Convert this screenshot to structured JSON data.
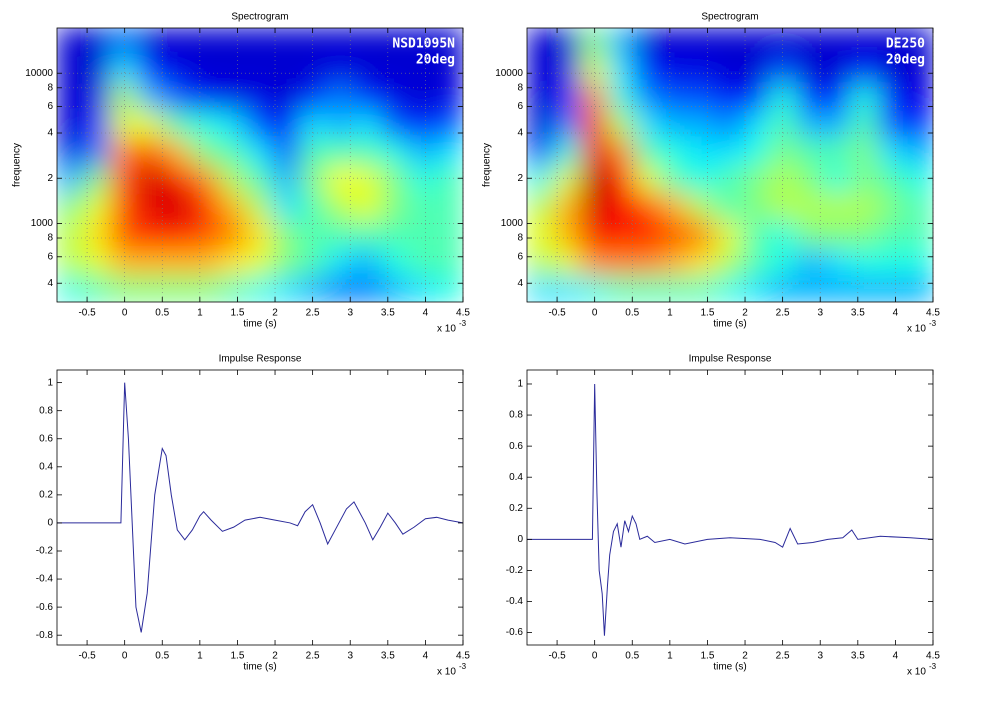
{
  "chart_data": [
    {
      "type": "heatmap",
      "title": "Spectrogram",
      "xlabel": "time (s)",
      "ylabel": "frequency",
      "x_multiplier": "x 10",
      "x_exponent": "-3",
      "annotations": [
        "NSD1095N",
        "20deg"
      ],
      "colormap": "jet",
      "clim": [
        0,
        1
      ],
      "grid": true,
      "ylog": true,
      "xlim": [
        -0.9,
        4.5
      ],
      "xticks": [
        -0.5,
        0,
        0.5,
        1,
        1.5,
        2,
        2.5,
        3,
        3.5,
        4,
        4.5
      ],
      "ylim": [
        300,
        20000
      ],
      "yticks": [
        {
          "value": 400,
          "label": "4"
        },
        {
          "value": 600,
          "label": "6"
        },
        {
          "value": 800,
          "label": "8"
        },
        1000,
        {
          "value": 2000,
          "label": "2"
        },
        {
          "value": 4000,
          "label": "4"
        },
        {
          "value": 6000,
          "label": "6"
        },
        {
          "value": 8000,
          "label": "8"
        },
        10000
      ],
      "x": [
        -0.72,
        -0.36,
        0,
        0.36,
        0.72,
        1.08,
        1.44,
        1.8,
        2.16,
        2.52,
        2.88,
        3.24,
        3.6,
        3.96,
        4.32
      ],
      "y": [
        370,
        560,
        860,
        1300,
        2000,
        3000,
        4600,
        7000,
        10600,
        16200
      ],
      "z": [
        [
          0.4,
          0.45,
          0.5,
          0.5,
          0.5,
          0.5,
          0.45,
          0.4,
          0.35,
          0.3,
          0.25,
          0.25,
          0.3,
          0.35,
          0.4
        ],
        [
          0.55,
          0.6,
          0.7,
          0.7,
          0.7,
          0.7,
          0.65,
          0.6,
          0.5,
          0.45,
          0.35,
          0.3,
          0.4,
          0.45,
          0.45
        ],
        [
          0.55,
          0.65,
          0.8,
          0.85,
          0.85,
          0.8,
          0.75,
          0.65,
          0.5,
          0.45,
          0.45,
          0.45,
          0.45,
          0.45,
          0.45
        ],
        [
          0.5,
          0.6,
          0.8,
          0.9,
          0.92,
          0.85,
          0.7,
          0.55,
          0.35,
          0.45,
          0.55,
          0.6,
          0.5,
          0.45,
          0.45
        ],
        [
          0.3,
          0.5,
          0.8,
          0.92,
          0.88,
          0.75,
          0.55,
          0.45,
          0.3,
          0.5,
          0.62,
          0.6,
          0.5,
          0.4,
          0.45
        ],
        [
          0.1,
          0.25,
          0.75,
          0.8,
          0.7,
          0.5,
          0.45,
          0.35,
          0.2,
          0.45,
          0.45,
          0.45,
          0.4,
          0.3,
          0.35
        ],
        [
          0.08,
          0.15,
          0.6,
          0.6,
          0.45,
          0.4,
          0.35,
          0.2,
          0.12,
          0.35,
          0.3,
          0.35,
          0.2,
          0.15,
          0.2
        ],
        [
          0.08,
          0.1,
          0.55,
          0.3,
          0.2,
          0.12,
          0.1,
          0.1,
          0.08,
          0.15,
          0.25,
          0.15,
          0.1,
          0.08,
          0.1
        ],
        [
          0.08,
          0.08,
          0.35,
          0.15,
          0.1,
          0.08,
          0.08,
          0.08,
          0.08,
          0.08,
          0.1,
          0.08,
          0.08,
          0.08,
          0.08
        ],
        [
          0.08,
          0.08,
          0.25,
          0.08,
          0.08,
          0.08,
          0.08,
          0.08,
          0.08,
          0.08,
          0.08,
          0.08,
          0.08,
          0.08,
          0.08
        ]
      ]
    },
    {
      "type": "heatmap",
      "title": "Spectrogram",
      "xlabel": "time (s)",
      "ylabel": "frequency",
      "x_multiplier": "x 10",
      "x_exponent": "-3",
      "annotations": [
        "DE250",
        "20deg"
      ],
      "colormap": "jet",
      "clim": [
        0,
        1
      ],
      "grid": true,
      "ylog": true,
      "xlim": [
        -0.9,
        4.5
      ],
      "xticks": [
        -0.5,
        0,
        0.5,
        1,
        1.5,
        2,
        2.5,
        3,
        3.5,
        4,
        4.5
      ],
      "ylim": [
        300,
        20000
      ],
      "yticks": [
        {
          "value": 400,
          "label": "4"
        },
        {
          "value": 600,
          "label": "6"
        },
        {
          "value": 800,
          "label": "8"
        },
        1000,
        {
          "value": 2000,
          "label": "2"
        },
        {
          "value": 4000,
          "label": "4"
        },
        {
          "value": 6000,
          "label": "6"
        },
        {
          "value": 8000,
          "label": "8"
        },
        10000
      ],
      "x": [
        -0.72,
        -0.36,
        0,
        0.36,
        0.72,
        1.08,
        1.44,
        1.8,
        2.16,
        2.52,
        2.88,
        3.24,
        3.6,
        3.96,
        4.32
      ],
      "y": [
        370,
        560,
        860,
        1300,
        2000,
        3000,
        4600,
        7000,
        10600,
        16200
      ],
      "z": [
        [
          0.35,
          0.35,
          0.4,
          0.45,
          0.45,
          0.45,
          0.45,
          0.4,
          0.35,
          0.3,
          0.3,
          0.3,
          0.3,
          0.3,
          0.3
        ],
        [
          0.55,
          0.6,
          0.75,
          0.75,
          0.75,
          0.7,
          0.65,
          0.55,
          0.45,
          0.4,
          0.3,
          0.35,
          0.4,
          0.4,
          0.4
        ],
        [
          0.6,
          0.7,
          0.88,
          0.85,
          0.85,
          0.8,
          0.75,
          0.6,
          0.45,
          0.4,
          0.5,
          0.5,
          0.5,
          0.45,
          0.45
        ],
        [
          0.55,
          0.7,
          0.92,
          0.88,
          0.8,
          0.7,
          0.55,
          0.45,
          0.5,
          0.55,
          0.55,
          0.55,
          0.55,
          0.5,
          0.45
        ],
        [
          0.4,
          0.6,
          0.95,
          0.85,
          0.6,
          0.45,
          0.4,
          0.45,
          0.5,
          0.55,
          0.5,
          0.4,
          0.5,
          0.45,
          0.4
        ],
        [
          0.15,
          0.4,
          0.9,
          0.75,
          0.45,
          0.4,
          0.35,
          0.35,
          0.4,
          0.5,
          0.45,
          0.45,
          0.5,
          0.35,
          0.3
        ],
        [
          0.08,
          0.25,
          0.85,
          0.55,
          0.35,
          0.3,
          0.3,
          0.25,
          0.35,
          0.45,
          0.3,
          0.3,
          0.45,
          0.2,
          0.15
        ],
        [
          0.08,
          0.15,
          0.75,
          0.4,
          0.25,
          0.2,
          0.2,
          0.12,
          0.15,
          0.4,
          0.15,
          0.15,
          0.4,
          0.12,
          0.1
        ],
        [
          0.08,
          0.1,
          0.6,
          0.35,
          0.15,
          0.1,
          0.1,
          0.08,
          0.08,
          0.2,
          0.08,
          0.08,
          0.15,
          0.08,
          0.08
        ],
        [
          0.08,
          0.08,
          0.5,
          0.3,
          0.08,
          0.08,
          0.08,
          0.08,
          0.08,
          0.08,
          0.08,
          0.08,
          0.08,
          0.08,
          0.08
        ]
      ]
    },
    {
      "type": "line",
      "title": "Impulse Response",
      "xlabel": "time (s)",
      "x_multiplier": "x 10",
      "x_exponent": "-3",
      "color": "#2b2b9b",
      "grid": false,
      "xlim": [
        -0.9,
        4.5
      ],
      "xticks": [
        -0.5,
        0,
        0.5,
        1,
        1.5,
        2,
        2.5,
        3,
        3.5,
        4,
        4.5
      ],
      "ylim": [
        -0.87,
        1.09
      ],
      "yticks": [
        -0.8,
        -0.6,
        -0.4,
        -0.2,
        0,
        0.2,
        0.4,
        0.6,
        0.8,
        1
      ],
      "x": [
        -0.9,
        -0.05,
        0,
        0.05,
        0.1,
        0.15,
        0.22,
        0.3,
        0.4,
        0.5,
        0.55,
        0.62,
        0.7,
        0.8,
        0.9,
        1.0,
        1.05,
        1.15,
        1.3,
        1.45,
        1.6,
        1.8,
        2.0,
        2.2,
        2.3,
        2.4,
        2.5,
        2.6,
        2.7,
        2.8,
        2.95,
        3.05,
        3.2,
        3.3,
        3.4,
        3.5,
        3.6,
        3.7,
        3.85,
        4.0,
        4.15,
        4.3,
        4.5
      ],
      "values": [
        0,
        0,
        1.0,
        0.6,
        0.0,
        -0.6,
        -0.78,
        -0.5,
        0.2,
        0.53,
        0.48,
        0.2,
        -0.05,
        -0.12,
        -0.05,
        0.05,
        0.08,
        0.02,
        -0.06,
        -0.03,
        0.02,
        0.04,
        0.02,
        0.0,
        -0.02,
        0.08,
        0.13,
        0.0,
        -0.15,
        -0.05,
        0.1,
        0.15,
        0.0,
        -0.12,
        -0.03,
        0.07,
        0.0,
        -0.08,
        -0.03,
        0.03,
        0.04,
        0.02,
        0.0
      ]
    },
    {
      "type": "line",
      "title": "Impulse Response",
      "xlabel": "time (s)",
      "x_multiplier": "x 10",
      "x_exponent": "-3",
      "color": "#2b2b9b",
      "grid": false,
      "xlim": [
        -0.9,
        4.5
      ],
      "xticks": [
        -0.5,
        0,
        0.5,
        1,
        1.5,
        2,
        2.5,
        3,
        3.5,
        4,
        4.5
      ],
      "ylim": [
        -0.68,
        1.09
      ],
      "yticks": [
        -0.6,
        -0.4,
        -0.2,
        0,
        0.2,
        0.4,
        0.6,
        0.8,
        1
      ],
      "x": [
        -0.9,
        -0.03,
        0,
        0.03,
        0.06,
        0.1,
        0.13,
        0.17,
        0.2,
        0.25,
        0.3,
        0.35,
        0.4,
        0.45,
        0.5,
        0.55,
        0.6,
        0.7,
        0.8,
        1.0,
        1.2,
        1.5,
        1.8,
        2.2,
        2.4,
        2.5,
        2.6,
        2.7,
        2.9,
        3.1,
        3.3,
        3.42,
        3.5,
        3.8,
        4.2,
        4.5
      ],
      "values": [
        0,
        0,
        1.0,
        0.3,
        -0.2,
        -0.35,
        -0.62,
        -0.3,
        -0.1,
        0.05,
        0.1,
        -0.05,
        0.12,
        0.05,
        0.15,
        0.1,
        0.0,
        0.02,
        -0.02,
        0.0,
        -0.03,
        0.0,
        0.01,
        0.0,
        -0.02,
        -0.05,
        0.07,
        -0.03,
        -0.02,
        0.0,
        0.01,
        0.06,
        0.0,
        0.02,
        0.01,
        0.0
      ]
    }
  ]
}
